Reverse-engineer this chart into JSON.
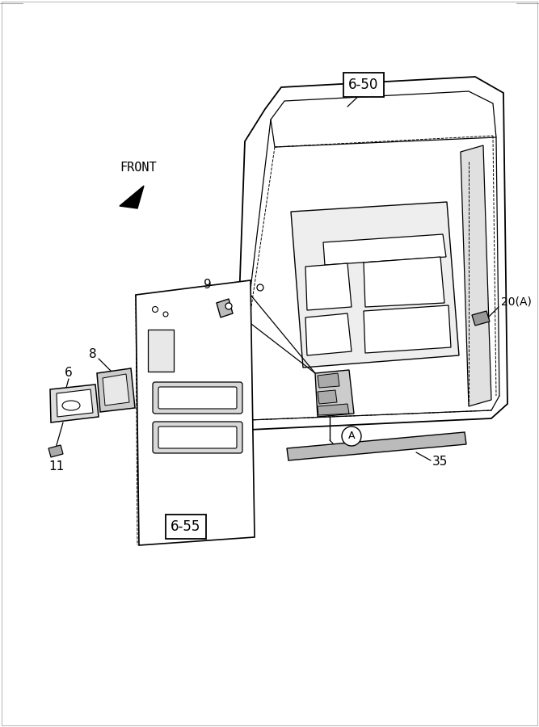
{
  "bg_color": "#ffffff",
  "line_color": "#000000",
  "figsize": [
    6.67,
    9.0
  ],
  "dpi": 100,
  "label_650": "6-50",
  "label_655": "6-55",
  "label_20A": "20(A)",
  "label_front": "FRONT",
  "label_9": "9",
  "label_8": "8",
  "label_6": "6",
  "label_11": "11",
  "label_35": "35",
  "label_A": "A"
}
